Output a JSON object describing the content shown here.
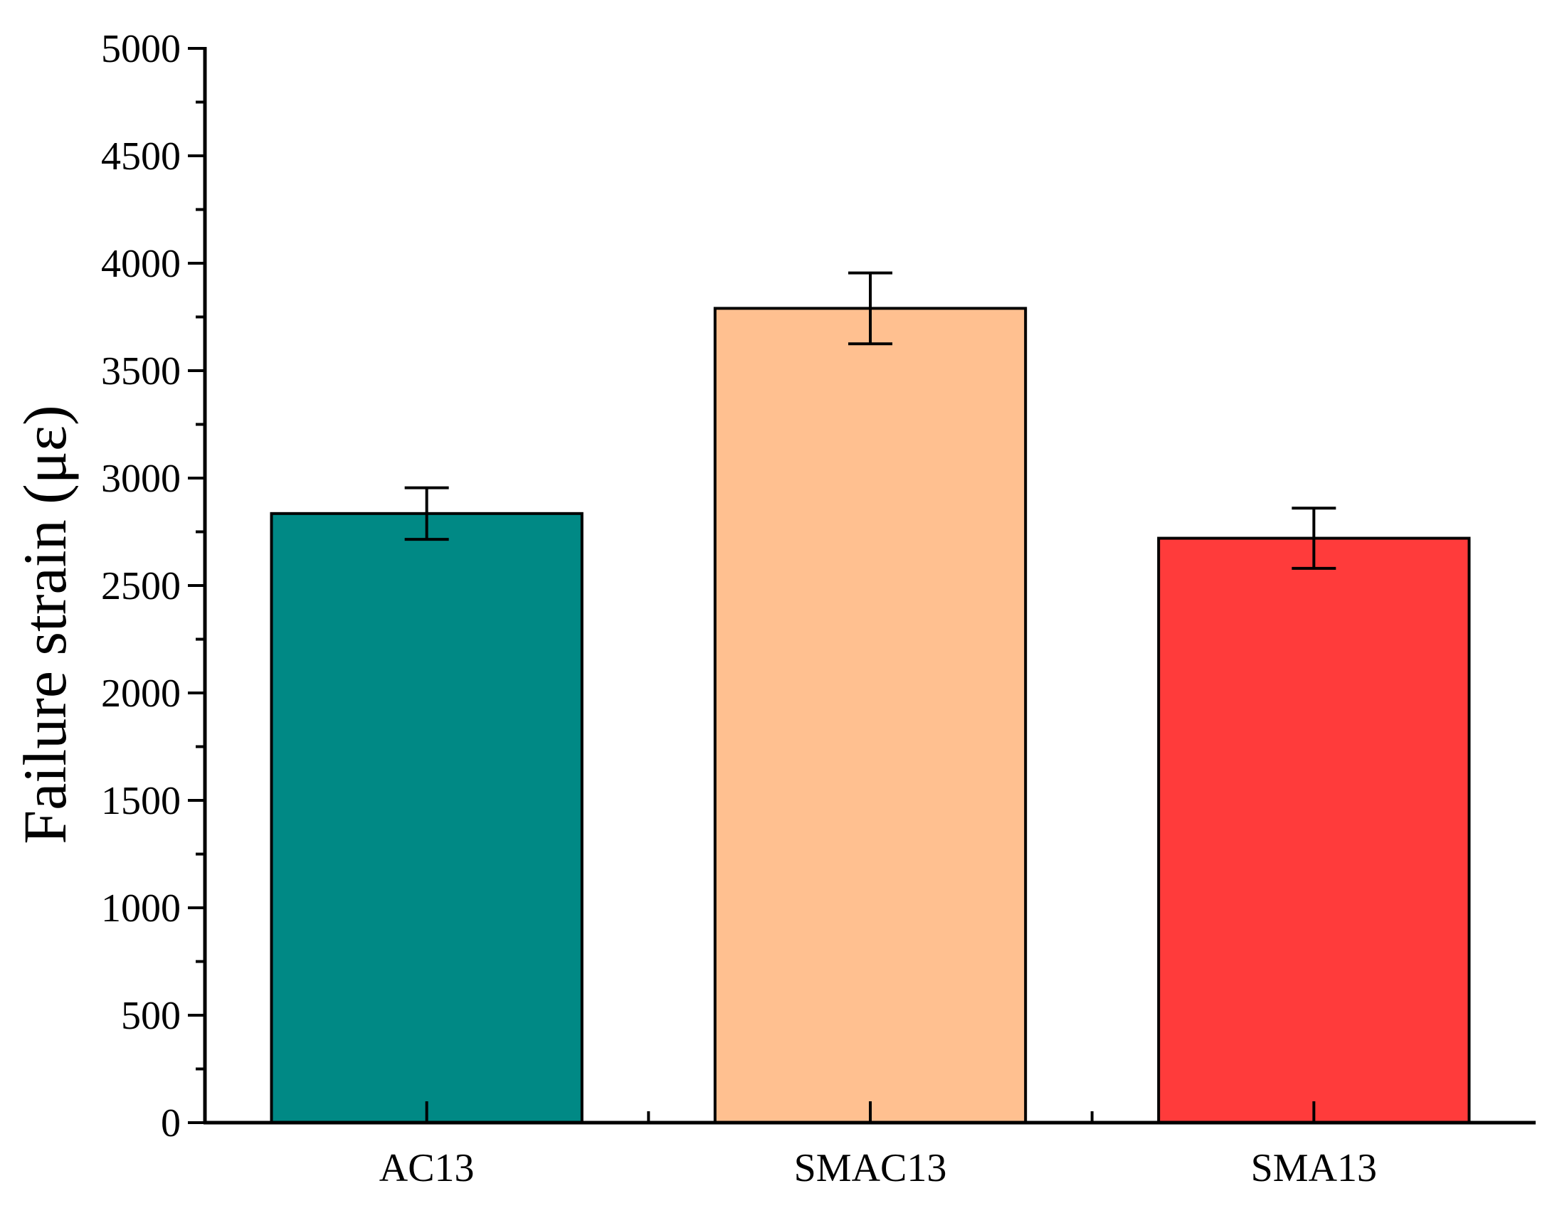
{
  "chart_data": {
    "type": "bar",
    "title": "",
    "xlabel": "",
    "ylabel": "Failure strain (με)",
    "categories": [
      "AC13",
      "SMAC13",
      "SMA13"
    ],
    "values": [
      2835,
      3790,
      2720
    ],
    "errors": [
      120,
      165,
      140
    ],
    "colors": [
      "#008985",
      "#FFC090",
      "#FF3B3B"
    ],
    "ylim": [
      0,
      5000
    ],
    "yticks": [
      0,
      500,
      1000,
      1500,
      2000,
      2500,
      3000,
      3500,
      4000,
      4500,
      5000
    ],
    "yticks_minor_step": 250,
    "grid": false,
    "legend": "none"
  }
}
